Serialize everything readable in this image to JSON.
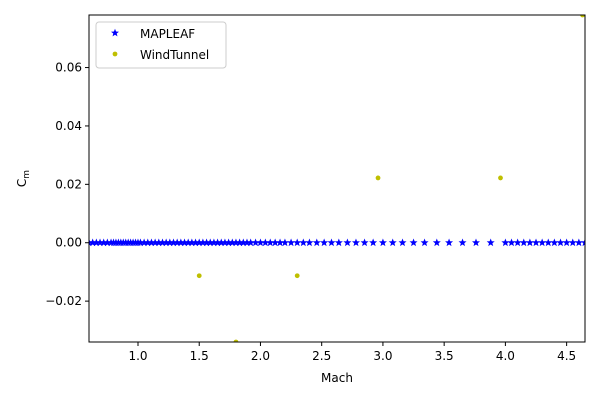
{
  "chart_data": {
    "type": "scatter",
    "xlabel": "Mach",
    "ylabel": "C",
    "ylabel_subscript": "m",
    "xlim": [
      0.6,
      4.65
    ],
    "ylim": [
      -0.034,
      0.078
    ],
    "xticks": [
      1.0,
      1.5,
      2.0,
      2.5,
      3.0,
      3.5,
      4.0,
      4.5
    ],
    "xtick_labels": [
      "1.0",
      "1.5",
      "2.0",
      "2.5",
      "3.0",
      "3.5",
      "4.0",
      "4.5"
    ],
    "yticks": [
      -0.02,
      0.0,
      0.02,
      0.04,
      0.06
    ],
    "ytick_labels": [
      "−0.02",
      "0.00",
      "0.02",
      "0.04",
      "0.06"
    ],
    "grid": false,
    "legend_placement": "top-left",
    "series": [
      {
        "name": "MAPLEAF",
        "marker": "star",
        "color": "#0000ff",
        "x": [
          0.6,
          0.63,
          0.66,
          0.69,
          0.72,
          0.75,
          0.78,
          0.8,
          0.82,
          0.84,
          0.86,
          0.88,
          0.9,
          0.92,
          0.94,
          0.96,
          0.98,
          1.0,
          1.02,
          1.05,
          1.08,
          1.11,
          1.14,
          1.17,
          1.2,
          1.23,
          1.26,
          1.29,
          1.32,
          1.35,
          1.38,
          1.41,
          1.44,
          1.47,
          1.5,
          1.53,
          1.56,
          1.59,
          1.62,
          1.65,
          1.68,
          1.71,
          1.74,
          1.77,
          1.8,
          1.83,
          1.86,
          1.89,
          1.92,
          1.96,
          2.0,
          2.04,
          2.08,
          2.12,
          2.16,
          2.2,
          2.25,
          2.3,
          2.35,
          2.4,
          2.46,
          2.52,
          2.58,
          2.64,
          2.71,
          2.78,
          2.85,
          2.92,
          3.0,
          3.08,
          3.16,
          3.25,
          3.34,
          3.44,
          3.54,
          3.65,
          3.76,
          3.88,
          4.0,
          4.05,
          4.1,
          4.15,
          4.2,
          4.25,
          4.3,
          4.35,
          4.4,
          4.45,
          4.5,
          4.55,
          4.6,
          4.65
        ],
        "y": [
          0,
          0,
          0,
          0,
          0,
          0,
          0,
          0,
          0,
          0,
          0,
          0,
          0,
          0,
          0,
          0,
          0,
          0,
          0,
          0,
          0,
          0,
          0,
          0,
          0,
          0,
          0,
          0,
          0,
          0,
          0,
          0,
          0,
          0,
          0,
          0,
          0,
          0,
          0,
          0,
          0,
          0,
          0,
          0,
          0,
          0,
          0,
          0,
          0,
          0,
          0,
          0,
          0,
          0,
          0,
          0,
          0,
          0,
          0,
          0,
          0,
          0,
          0,
          0,
          0,
          0,
          0,
          0,
          0,
          0,
          0,
          0,
          0,
          0,
          0,
          0,
          0,
          0,
          0,
          0,
          0,
          0,
          0,
          0,
          0,
          0,
          0,
          0,
          0,
          0,
          0,
          0
        ]
      },
      {
        "name": "WindTunnel",
        "marker": "circle",
        "color": "#bfbf00",
        "x": [
          1.5,
          1.8,
          2.3,
          2.96,
          3.96,
          4.63
        ],
        "y": [
          -0.0113,
          -0.034,
          -0.0113,
          0.0222,
          0.0222,
          0.078
        ]
      }
    ]
  }
}
